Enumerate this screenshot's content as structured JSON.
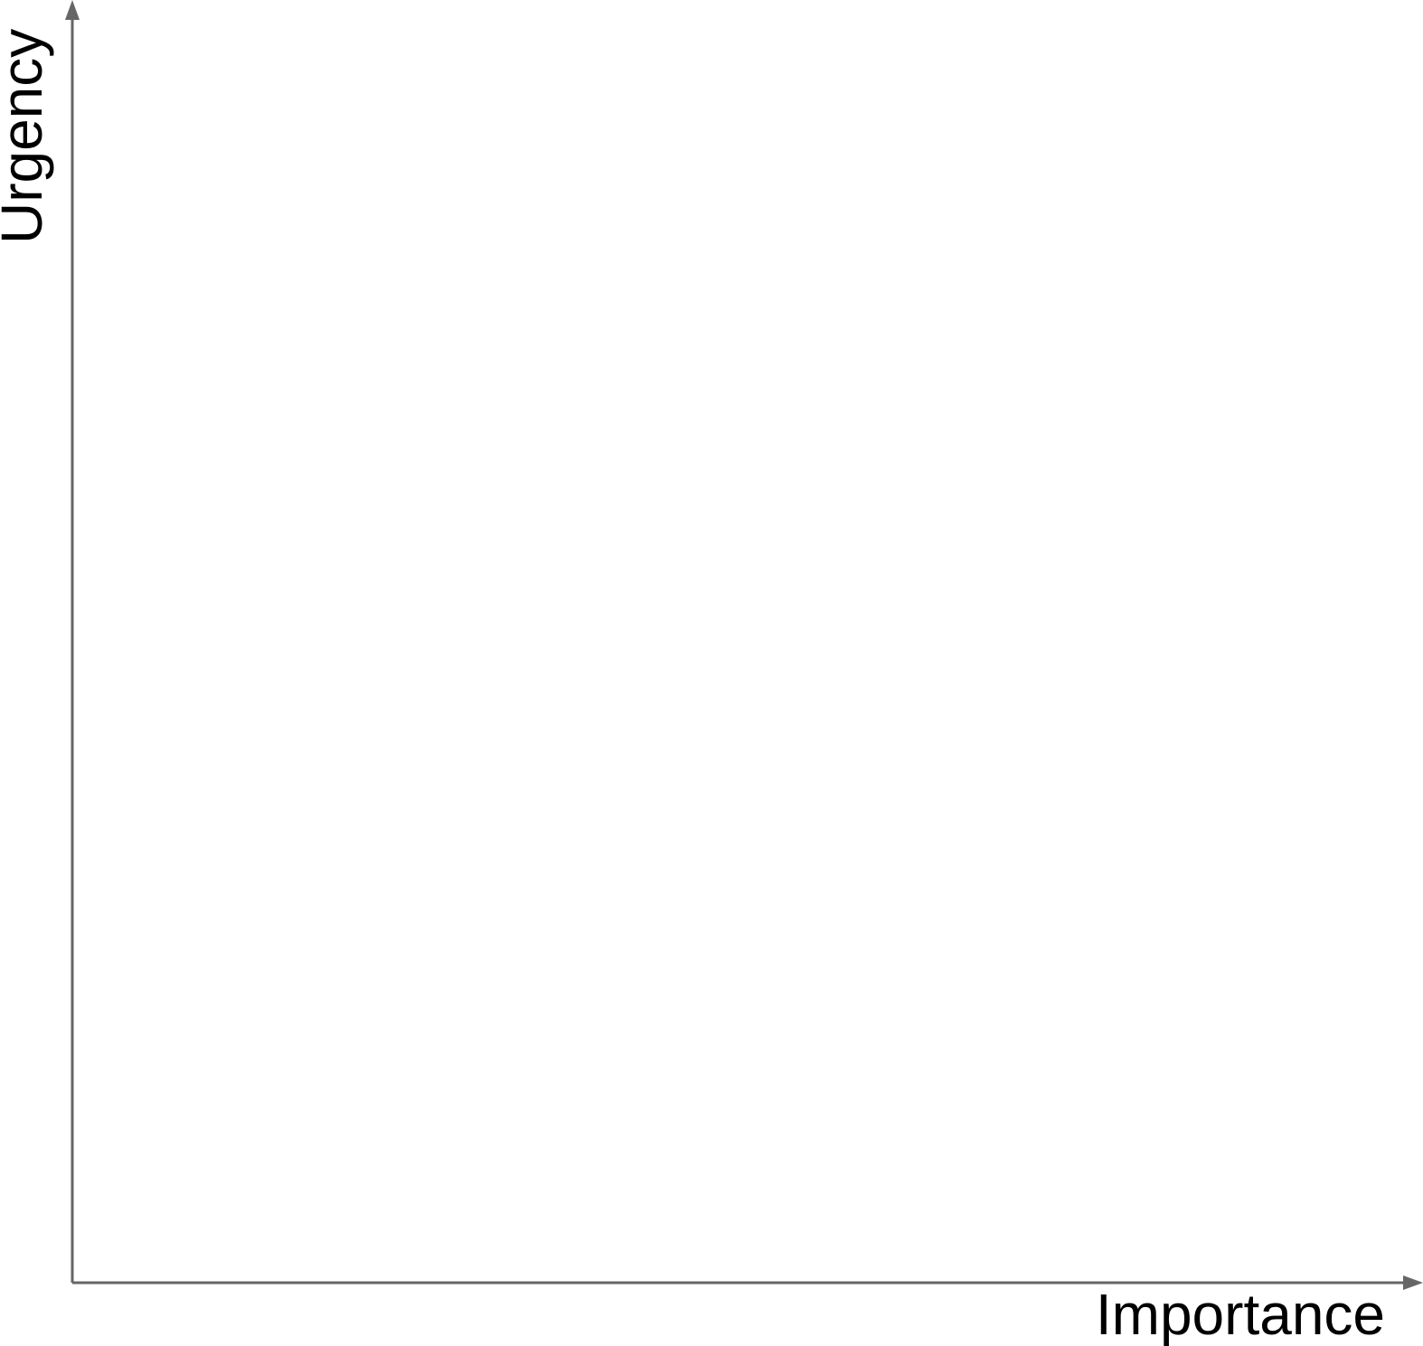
{
  "diagram": {
    "axes": {
      "x_label": "Importance",
      "y_label": "Urgency"
    },
    "colors": {
      "axis": "#666666",
      "label": "#000000",
      "background": "#ffffff"
    }
  }
}
